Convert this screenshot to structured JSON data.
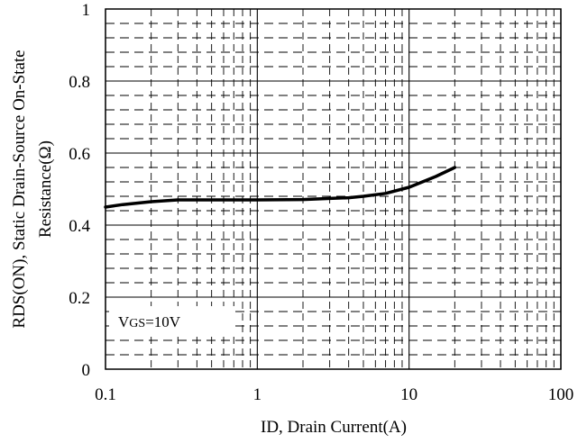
{
  "chart_data": {
    "type": "line",
    "xlabel": "ID, Drain Current(A)",
    "ylabel_line1": "RDS(ON), Static Drain-Source On-State",
    "ylabel_line2": "Resistance(Ω)",
    "x_scale": "log",
    "xlim": [
      0.1,
      100
    ],
    "ylim": [
      0,
      1
    ],
    "x_ticks": [
      "0.1",
      "1",
      "10",
      "100"
    ],
    "y_ticks": [
      "0",
      "0.2",
      "0.4",
      "0.6",
      "0.8",
      "1"
    ],
    "grid": true,
    "annotation": {
      "main": "V",
      "sub": "GS",
      "rest": "=10V"
    },
    "series": [
      {
        "x": [
          0.1,
          0.13,
          0.2,
          0.3,
          0.5,
          1,
          2,
          3,
          4,
          5,
          7,
          10,
          15,
          20
        ],
        "values": [
          0.45,
          0.457,
          0.465,
          0.47,
          0.47,
          0.47,
          0.471,
          0.474,
          0.476,
          0.48,
          0.488,
          0.505,
          0.535,
          0.56
        ]
      }
    ]
  }
}
